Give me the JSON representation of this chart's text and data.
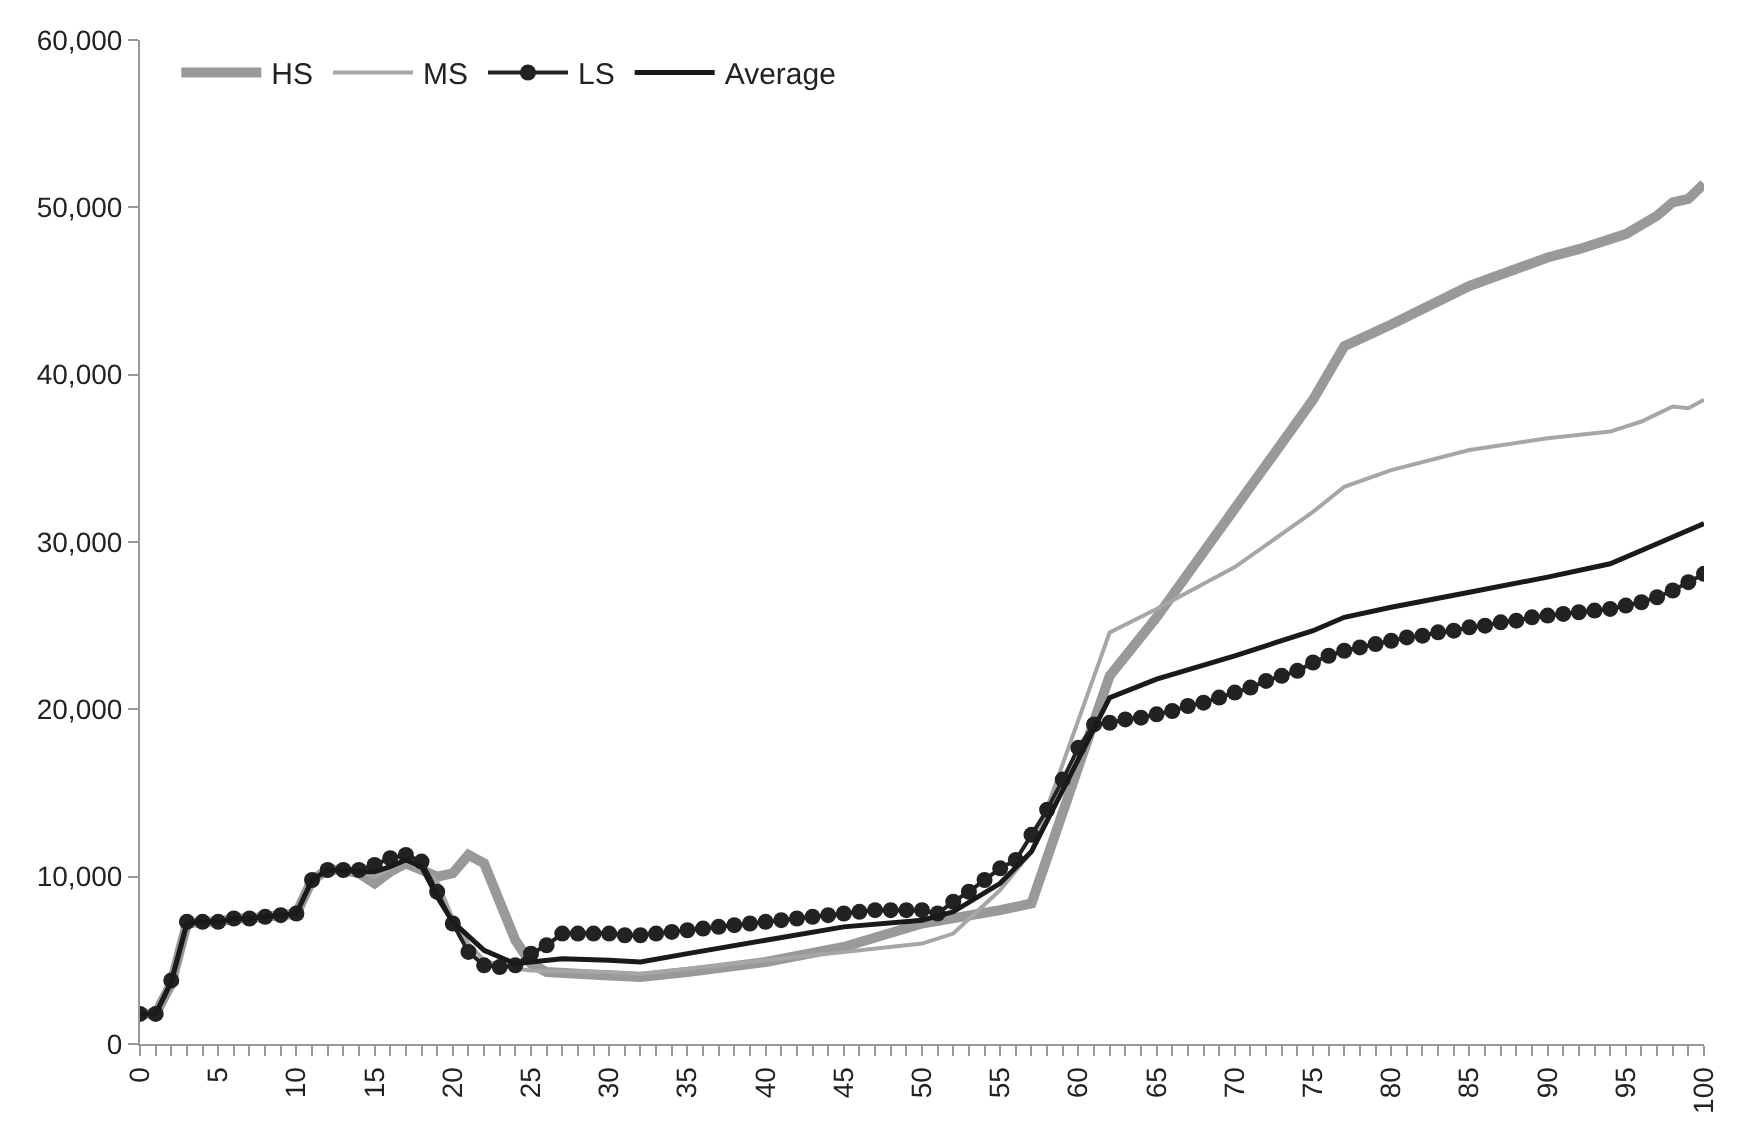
{
  "chart_data": {
    "type": "line",
    "xlim": [
      0,
      100
    ],
    "xticks": [
      0,
      5,
      10,
      15,
      20,
      25,
      30,
      35,
      40,
      45,
      50,
      55,
      60,
      65,
      70,
      75,
      80,
      85,
      90,
      95,
      100
    ],
    "ylim": [
      0,
      60000
    ],
    "yticks": [
      {
        "value": 0,
        "label": "0"
      },
      {
        "value": 10000,
        "label": "10,000"
      },
      {
        "value": 20000,
        "label": "20,000"
      },
      {
        "value": 30000,
        "label": "30,000"
      },
      {
        "value": 40000,
        "label": "40,000"
      },
      {
        "value": 50000,
        "label": "50,000"
      },
      {
        "value": 60000,
        "label": "60,000"
      }
    ],
    "legend": "top left",
    "series": [
      {
        "name": "HS",
        "color": "#999999",
        "marker": "none",
        "x": [
          0,
          1,
          2,
          3,
          4,
          5,
          6,
          7,
          8,
          9,
          10,
          11,
          12,
          13,
          14,
          15,
          16,
          17,
          18,
          19,
          20,
          21,
          22,
          23,
          24,
          25,
          26,
          30,
          32,
          35,
          40,
          45,
          50,
          55,
          57,
          62,
          65,
          70,
          75,
          77,
          80,
          85,
          90,
          92,
          95,
          97,
          98,
          99,
          100
        ],
        "values": [
          1800,
          1800,
          3600,
          7200,
          7300,
          7300,
          7500,
          7500,
          7600,
          7700,
          7800,
          9800,
          10400,
          10400,
          10200,
          9600,
          10300,
          10800,
          10400,
          10000,
          10200,
          11300,
          10800,
          8500,
          6200,
          4800,
          4300,
          4100,
          4000,
          4300,
          4900,
          5800,
          7200,
          8000,
          8400,
          22000,
          25500,
          32000,
          38500,
          41700,
          43000,
          45300,
          47000,
          47500,
          48400,
          49500,
          50300,
          50500,
          51400
        ]
      },
      {
        "name": "MS",
        "color": "#a6a6a6",
        "marker": "none",
        "x": [
          0,
          1,
          2,
          3,
          4,
          5,
          6,
          7,
          8,
          9,
          10,
          11,
          12,
          13,
          14,
          15,
          16,
          17,
          18,
          19,
          20,
          21,
          22,
          23,
          24,
          25,
          30,
          32,
          35,
          40,
          45,
          50,
          52,
          55,
          57,
          62,
          65,
          70,
          75,
          77,
          80,
          85,
          90,
          94,
          96,
          98,
          99,
          100
        ],
        "values": [
          1800,
          1800,
          3700,
          7200,
          7300,
          7300,
          7500,
          7500,
          7600,
          7700,
          7800,
          9800,
          10400,
          10400,
          10300,
          10000,
          10500,
          10900,
          10500,
          9700,
          7500,
          6000,
          5000,
          4700,
          4500,
          4400,
          4300,
          4200,
          4500,
          5000,
          5500,
          6000,
          6600,
          9200,
          11500,
          24600,
          26000,
          28500,
          31800,
          33300,
          34300,
          35500,
          36200,
          36600,
          37200,
          38100,
          38000,
          38500
        ]
      },
      {
        "name": "LS",
        "color": "#222222",
        "marker": "circle",
        "x": [
          0,
          1,
          2,
          3,
          4,
          5,
          6,
          7,
          8,
          9,
          10,
          11,
          12,
          13,
          14,
          15,
          16,
          17,
          18,
          19,
          20,
          21,
          22,
          23,
          24,
          25,
          26,
          27,
          28,
          29,
          30,
          31,
          32,
          33,
          34,
          35,
          36,
          37,
          38,
          39,
          40,
          41,
          42,
          43,
          44,
          45,
          46,
          47,
          48,
          49,
          50,
          51,
          52,
          53,
          54,
          55,
          56,
          57,
          58,
          59,
          60,
          61,
          62,
          63,
          64,
          65,
          66,
          67,
          68,
          69,
          70,
          71,
          72,
          73,
          74,
          75,
          76,
          77,
          78,
          79,
          80,
          81,
          82,
          83,
          84,
          85,
          86,
          87,
          88,
          89,
          90,
          91,
          92,
          93,
          94,
          95,
          96,
          97,
          98,
          99,
          100
        ],
        "values": [
          1800,
          1800,
          3800,
          7300,
          7300,
          7300,
          7500,
          7500,
          7600,
          7700,
          7800,
          9800,
          10400,
          10400,
          10400,
          10700,
          11100,
          11300,
          10900,
          9100,
          7200,
          5500,
          4700,
          4600,
          4700,
          5400,
          5900,
          6600,
          6600,
          6600,
          6600,
          6500,
          6500,
          6600,
          6700,
          6800,
          6900,
          7000,
          7100,
          7200,
          7300,
          7400,
          7500,
          7600,
          7700,
          7800,
          7900,
          8000,
          8000,
          8000,
          8000,
          7800,
          8500,
          9100,
          9800,
          10500,
          11000,
          12500,
          14000,
          15800,
          17700,
          19100,
          19200,
          19400,
          19500,
          19700,
          19900,
          20200,
          20400,
          20700,
          21000,
          21300,
          21700,
          22000,
          22300,
          22800,
          23200,
          23500,
          23700,
          23900,
          24100,
          24300,
          24400,
          24600,
          24700,
          24900,
          25000,
          25200,
          25300,
          25500,
          25600,
          25700,
          25800,
          25900,
          26000,
          26200,
          26400,
          26700,
          27100,
          27600,
          28100
        ]
      },
      {
        "name": "Average",
        "color": "#1a1a1a",
        "marker": "none",
        "x": [
          0,
          1,
          2,
          3,
          4,
          5,
          6,
          7,
          8,
          9,
          10,
          11,
          12,
          13,
          14,
          15,
          16,
          17,
          18,
          19,
          20,
          22,
          24,
          25,
          27,
          30,
          32,
          35,
          40,
          45,
          50,
          52,
          55,
          57,
          62,
          65,
          70,
          75,
          77,
          80,
          85,
          90,
          94,
          97,
          100
        ],
        "values": [
          1800,
          1800,
          3700,
          7200,
          7300,
          7300,
          7500,
          7500,
          7600,
          7700,
          7800,
          9800,
          10400,
          10400,
          10300,
          10300,
          10600,
          11000,
          10600,
          8800,
          7300,
          5600,
          4800,
          4900,
          5100,
          5000,
          4900,
          5400,
          6200,
          7000,
          7400,
          7900,
          9600,
          11500,
          20700,
          21800,
          23200,
          24700,
          25500,
          26100,
          27000,
          27900,
          28700,
          29900,
          31100
        ]
      }
    ]
  }
}
